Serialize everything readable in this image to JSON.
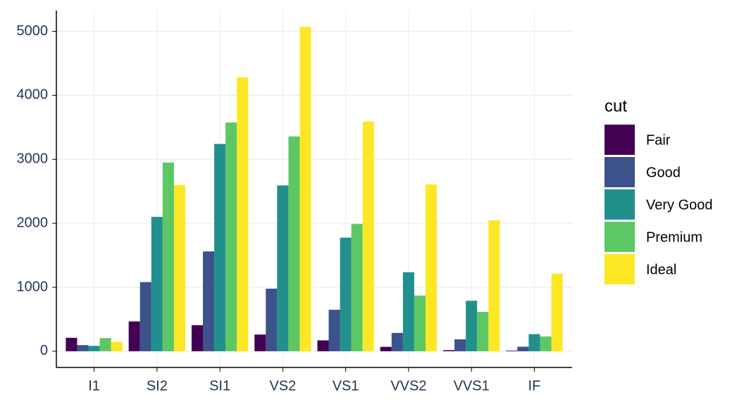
{
  "chart_data": {
    "type": "bar",
    "categories": [
      "I1",
      "SI2",
      "SI1",
      "VS2",
      "VS1",
      "VVS2",
      "VVS1",
      "IF"
    ],
    "series": [
      {
        "name": "Fair",
        "color": "#440154",
        "values": [
          210,
          466,
          408,
          261,
          170,
          69,
          17,
          9
        ]
      },
      {
        "name": "Good",
        "color": "#3B528B",
        "values": [
          96,
          1081,
          1560,
          978,
          648,
          286,
          186,
          71
        ]
      },
      {
        "name": "Very Good",
        "color": "#21908C",
        "values": [
          84,
          2100,
          3240,
          2591,
          1775,
          1235,
          789,
          268
        ]
      },
      {
        "name": "Premium",
        "color": "#5DC863",
        "values": [
          205,
          2949,
          3575,
          3357,
          1989,
          870,
          616,
          230
        ]
      },
      {
        "name": "Ideal",
        "color": "#FDE725",
        "values": [
          146,
          2598,
          4282,
          5071,
          3589,
          2606,
          2047,
          1212
        ]
      }
    ],
    "legend_title": "cut",
    "legend_position": "right",
    "ylim": [
      -253.55,
      5324.55
    ],
    "yticks": [
      0,
      1000,
      2000,
      3000,
      4000,
      5000
    ],
    "grid": true
  }
}
